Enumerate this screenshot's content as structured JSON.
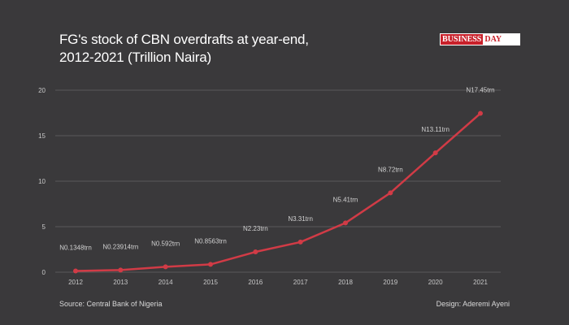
{
  "header": {
    "title_line1": "FG's stock of CBN overdrafts at year-end,",
    "title_line2": "2012-2021 (Trillion Naira)",
    "logo_left": "BUSINESS",
    "logo_right": "DAY"
  },
  "footer": {
    "source": "Source: Central Bank of Nigeria",
    "design": "Design: Aderemi Ayeni"
  },
  "colors": {
    "background": "#3a393b",
    "line": "#d13b46",
    "grid": "#5a595b"
  },
  "chart_data": {
    "type": "line",
    "title": "FG's stock of CBN overdrafts at year-end, 2012-2021 (Trillion Naira)",
    "xlabel": "",
    "ylabel": "",
    "categories": [
      "2012",
      "2013",
      "2014",
      "2015",
      "2016",
      "2017",
      "2018",
      "2019",
      "2020",
      "2021"
    ],
    "values": [
      0.1348,
      0.23914,
      0.592,
      0.8563,
      2.23,
      3.31,
      5.41,
      8.72,
      13.11,
      17.45
    ],
    "data_labels": [
      "N0.1348trn",
      "N0.23914trn",
      "N0.592trn",
      "N0.8563trn",
      "N2.23trn",
      "N3.31trn",
      "N5.41trn",
      "N8.72trn",
      "N13.11trn",
      "N17.45trn"
    ],
    "ylim": [
      0,
      20
    ],
    "yticks": [
      "0",
      "5",
      "10",
      "15",
      "20"
    ],
    "grid": true,
    "legend": "none"
  }
}
